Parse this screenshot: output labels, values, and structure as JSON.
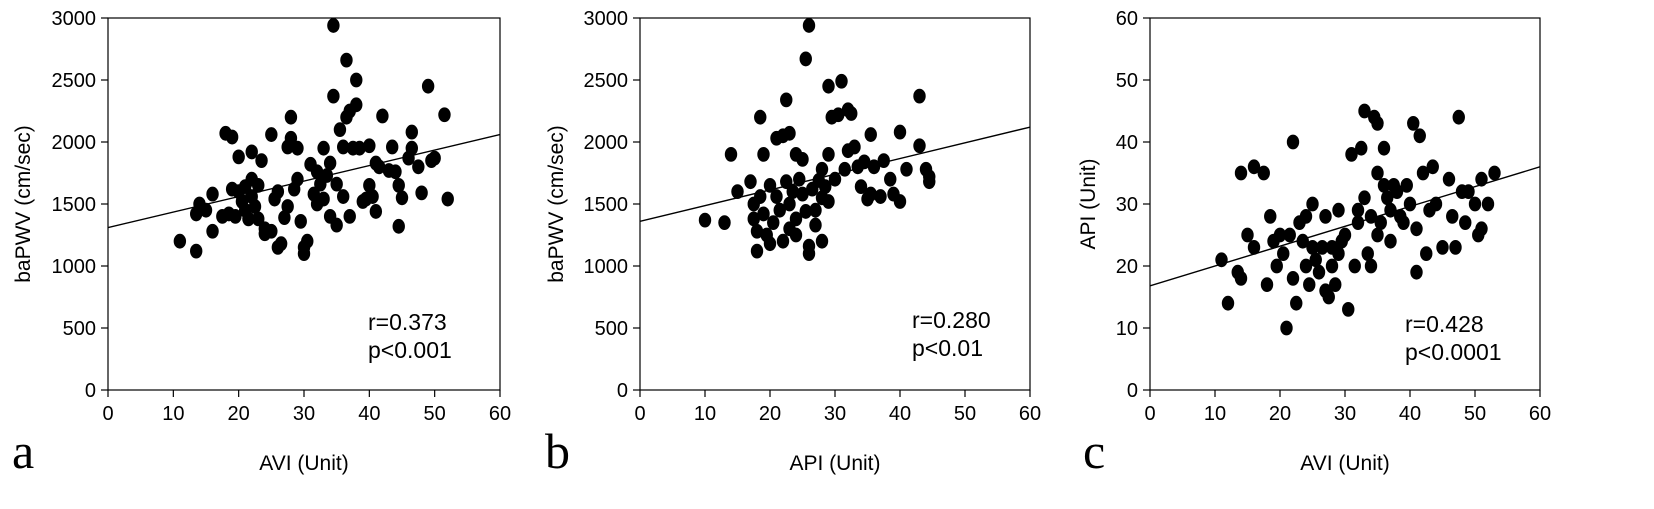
{
  "chart_data": [
    {
      "type": "scatter",
      "panel_label": "a",
      "xlabel": "AVI (Unit)",
      "ylabel": "baPWV (cm/sec)",
      "xlim": [
        0,
        60
      ],
      "ylim": [
        0,
        3000
      ],
      "xticks": [
        0,
        10,
        20,
        30,
        40,
        50,
        60
      ],
      "yticks": [
        0,
        500,
        1000,
        1500,
        2000,
        2500,
        3000
      ],
      "annotation": [
        "r=0.373",
        "p<0.001"
      ],
      "fit_line": {
        "x": [
          0,
          60
        ],
        "y": [
          1310,
          2060
        ]
      },
      "points": [
        [
          11,
          1200
        ],
        [
          13.5,
          1120
        ],
        [
          13.5,
          1420
        ],
        [
          14,
          1500
        ],
        [
          15,
          1450
        ],
        [
          16,
          1280
        ],
        [
          16,
          1580
        ],
        [
          17.5,
          1400
        ],
        [
          18,
          2070
        ],
        [
          18.5,
          1420
        ],
        [
          19,
          2040
        ],
        [
          19,
          1620
        ],
        [
          19.5,
          1400
        ],
        [
          20,
          1880
        ],
        [
          20,
          1600
        ],
        [
          20.5,
          1520
        ],
        [
          21,
          1450
        ],
        [
          21,
          1640
        ],
        [
          21.5,
          1380
        ],
        [
          22,
          1920
        ],
        [
          22,
          1700
        ],
        [
          22,
          1560
        ],
        [
          22.5,
          1480
        ],
        [
          23,
          1650
        ],
        [
          23,
          1380
        ],
        [
          23.5,
          1850
        ],
        [
          24,
          1300
        ],
        [
          24,
          1260
        ],
        [
          25,
          2060
        ],
        [
          25,
          1280
        ],
        [
          25.5,
          1540
        ],
        [
          26,
          1600
        ],
        [
          26,
          1150
        ],
        [
          26.5,
          1180
        ],
        [
          27,
          1390
        ],
        [
          27.5,
          1960
        ],
        [
          27.5,
          1480
        ],
        [
          28,
          2200
        ],
        [
          28,
          2030
        ],
        [
          28.5,
          1620
        ],
        [
          29,
          1950
        ],
        [
          29,
          1700
        ],
        [
          29.5,
          1360
        ],
        [
          30,
          1150
        ],
        [
          30,
          1100
        ],
        [
          30.5,
          1200
        ],
        [
          31,
          1820
        ],
        [
          31.5,
          1580
        ],
        [
          32,
          1760
        ],
        [
          32,
          1500
        ],
        [
          32.5,
          1660
        ],
        [
          33,
          1950
        ],
        [
          33,
          1540
        ],
        [
          33.5,
          1730
        ],
        [
          34,
          1830
        ],
        [
          34,
          1400
        ],
        [
          34.5,
          2940
        ],
        [
          34.5,
          2370
        ],
        [
          35,
          1660
        ],
        [
          35,
          1330
        ],
        [
          35.5,
          2100
        ],
        [
          36,
          1960
        ],
        [
          36,
          1560
        ],
        [
          36.5,
          2660
        ],
        [
          36.5,
          2200
        ],
        [
          37,
          2250
        ],
        [
          37,
          1400
        ],
        [
          37.5,
          1950
        ],
        [
          38,
          2500
        ],
        [
          38,
          2300
        ],
        [
          38.5,
          1950
        ],
        [
          39,
          1520
        ],
        [
          39.5,
          1540
        ],
        [
          40,
          1970
        ],
        [
          40,
          1650
        ],
        [
          40.5,
          1560
        ],
        [
          41,
          1830
        ],
        [
          41,
          1440
        ],
        [
          41.5,
          1800
        ],
        [
          42,
          2210
        ],
        [
          43,
          1770
        ],
        [
          43.5,
          1960
        ],
        [
          44,
          1760
        ],
        [
          44.5,
          1650
        ],
        [
          44.5,
          1320
        ],
        [
          45,
          1550
        ],
        [
          46,
          1870
        ],
        [
          46.5,
          2080
        ],
        [
          46.5,
          1950
        ],
        [
          47.5,
          1800
        ],
        [
          48,
          1590
        ],
        [
          49,
          2450
        ],
        [
          49.5,
          1850
        ],
        [
          50,
          1870
        ],
        [
          51.5,
          2220
        ],
        [
          52,
          1540
        ]
      ]
    },
    {
      "type": "scatter",
      "panel_label": "b",
      "xlabel": "API (Unit)",
      "ylabel": "baPWV (cm/sec)",
      "xlim": [
        0,
        60
      ],
      "ylim": [
        0,
        3000
      ],
      "xticks": [
        0,
        10,
        20,
        30,
        40,
        50,
        60
      ],
      "yticks": [
        0,
        500,
        1000,
        1500,
        2000,
        2500,
        3000
      ],
      "annotation": [
        "r=0.280",
        "p<0.01"
      ],
      "fit_line": {
        "x": [
          0,
          60
        ],
        "y": [
          1360,
          2120
        ]
      },
      "points": [
        [
          10,
          1370
        ],
        [
          13,
          1350
        ],
        [
          14,
          1900
        ],
        [
          15,
          1600
        ],
        [
          17,
          1680
        ],
        [
          17.5,
          1500
        ],
        [
          17.5,
          1380
        ],
        [
          18,
          1280
        ],
        [
          18,
          1120
        ],
        [
          18.5,
          2200
        ],
        [
          18.5,
          1560
        ],
        [
          19,
          1900
        ],
        [
          19,
          1420
        ],
        [
          19.5,
          1250
        ],
        [
          20,
          1650
        ],
        [
          20,
          1180
        ],
        [
          20.5,
          1350
        ],
        [
          21,
          2030
        ],
        [
          21,
          1560
        ],
        [
          21.5,
          1450
        ],
        [
          22,
          2050
        ],
        [
          22,
          1200
        ],
        [
          22.5,
          2340
        ],
        [
          22.5,
          1680
        ],
        [
          23,
          2070
        ],
        [
          23,
          1500
        ],
        [
          23,
          1300
        ],
        [
          23.5,
          1600
        ],
        [
          24,
          1900
        ],
        [
          24,
          1380
        ],
        [
          24,
          1250
        ],
        [
          24.5,
          1700
        ],
        [
          25,
          1860
        ],
        [
          25,
          1580
        ],
        [
          25.5,
          2670
        ],
        [
          25.5,
          1440
        ],
        [
          26,
          2940
        ],
        [
          26,
          1100
        ],
        [
          26,
          1160
        ],
        [
          26.5,
          1620
        ],
        [
          27,
          1450
        ],
        [
          27,
          1330
        ],
        [
          27.5,
          1690
        ],
        [
          28,
          1780
        ],
        [
          28,
          1550
        ],
        [
          28,
          1200
        ],
        [
          28.5,
          1640
        ],
        [
          29,
          2450
        ],
        [
          29,
          1900
        ],
        [
          29,
          1520
        ],
        [
          29.5,
          2200
        ],
        [
          30,
          1700
        ],
        [
          30.5,
          2220
        ],
        [
          31,
          2490
        ],
        [
          31.5,
          1780
        ],
        [
          32,
          2260
        ],
        [
          32,
          1930
        ],
        [
          32.5,
          2230
        ],
        [
          33,
          1960
        ],
        [
          33.5,
          1800
        ],
        [
          34,
          1640
        ],
        [
          34.5,
          1840
        ],
        [
          35,
          1540
        ],
        [
          35.5,
          2060
        ],
        [
          35.5,
          1580
        ],
        [
          36,
          1800
        ],
        [
          37,
          1560
        ],
        [
          37.5,
          1850
        ],
        [
          38.5,
          1700
        ],
        [
          39,
          1580
        ],
        [
          40,
          2080
        ],
        [
          40,
          1520
        ],
        [
          41,
          1780
        ],
        [
          43,
          2370
        ],
        [
          43,
          1970
        ],
        [
          44,
          1780
        ],
        [
          44.5,
          1720
        ],
        [
          44.5,
          1680
        ]
      ]
    },
    {
      "type": "scatter",
      "panel_label": "c",
      "xlabel": "AVI (Unit)",
      "ylabel": "API (Unit)",
      "xlim": [
        0,
        60
      ],
      "ylim": [
        0,
        60
      ],
      "xticks": [
        0,
        10,
        20,
        30,
        40,
        50,
        60
      ],
      "yticks": [
        0,
        10,
        20,
        30,
        40,
        50,
        60
      ],
      "annotation": [
        "r=0.428",
        "p<0.0001"
      ],
      "fit_line": {
        "x": [
          0,
          60
        ],
        "y": [
          16.8,
          36
        ]
      },
      "points": [
        [
          11,
          21
        ],
        [
          12,
          14
        ],
        [
          13.5,
          19
        ],
        [
          14,
          35
        ],
        [
          14,
          18
        ],
        [
          15,
          25
        ],
        [
          16,
          36
        ],
        [
          16,
          23
        ],
        [
          17.5,
          35
        ],
        [
          18,
          17
        ],
        [
          18.5,
          28
        ],
        [
          19,
          24
        ],
        [
          19.5,
          20
        ],
        [
          20,
          25
        ],
        [
          20.5,
          22
        ],
        [
          21,
          10
        ],
        [
          21.5,
          25
        ],
        [
          22,
          40
        ],
        [
          22,
          18
        ],
        [
          22.5,
          14
        ],
        [
          23,
          27
        ],
        [
          23.5,
          24
        ],
        [
          24,
          28
        ],
        [
          24,
          20
        ],
        [
          24.5,
          17
        ],
        [
          25,
          30
        ],
        [
          25,
          23
        ],
        [
          25.5,
          21
        ],
        [
          26,
          19
        ],
        [
          26.5,
          23
        ],
        [
          27,
          16
        ],
        [
          27,
          28
        ],
        [
          27.5,
          15
        ],
        [
          28,
          23
        ],
        [
          28,
          20
        ],
        [
          28.5,
          17
        ],
        [
          29,
          22
        ],
        [
          29,
          29
        ],
        [
          29.5,
          24
        ],
        [
          30,
          25
        ],
        [
          30.5,
          13
        ],
        [
          31,
          38
        ],
        [
          31.5,
          20
        ],
        [
          32,
          27
        ],
        [
          32,
          29
        ],
        [
          32.5,
          39
        ],
        [
          33,
          45
        ],
        [
          33,
          31
        ],
        [
          33.5,
          22
        ],
        [
          34,
          28
        ],
        [
          34,
          20
        ],
        [
          34.5,
          44
        ],
        [
          35,
          43
        ],
        [
          35,
          35
        ],
        [
          35,
          25
        ],
        [
          35.5,
          27
        ],
        [
          36,
          39
        ],
        [
          36,
          33
        ],
        [
          36.5,
          31
        ],
        [
          37,
          29
        ],
        [
          37,
          24
        ],
        [
          37.5,
          33
        ],
        [
          38,
          32
        ],
        [
          38.5,
          28
        ],
        [
          39,
          27
        ],
        [
          39.5,
          33
        ],
        [
          40,
          30
        ],
        [
          40.5,
          43
        ],
        [
          41,
          26
        ],
        [
          41,
          19
        ],
        [
          41.5,
          41
        ],
        [
          42,
          35
        ],
        [
          42.5,
          22
        ],
        [
          43,
          29
        ],
        [
          43.5,
          36
        ],
        [
          44,
          30
        ],
        [
          45,
          23
        ],
        [
          46,
          34
        ],
        [
          46.5,
          28
        ],
        [
          47,
          23
        ],
        [
          47.5,
          44
        ],
        [
          48,
          32
        ],
        [
          48.5,
          27
        ],
        [
          49,
          32
        ],
        [
          50,
          30
        ],
        [
          50.5,
          25
        ],
        [
          51,
          26
        ],
        [
          52,
          30
        ],
        [
          53,
          35
        ],
        [
          51,
          34
        ]
      ]
    }
  ]
}
